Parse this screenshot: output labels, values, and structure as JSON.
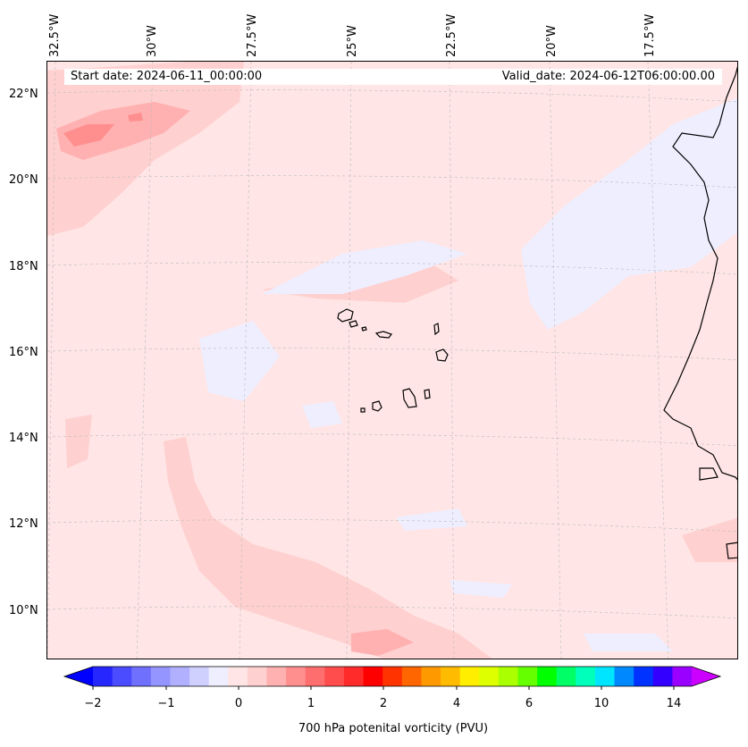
{
  "map": {
    "longitude_labels": [
      "32.5°W",
      "30°W",
      "27.5°W",
      "25°W",
      "22.5°W",
      "20°W",
      "17.5°W"
    ],
    "latitude_labels": [
      "22°N",
      "20°N",
      "18°N",
      "16°N",
      "14°N",
      "12°N",
      "10°N"
    ],
    "start_date": "Start date: 2024-06-11_00:00:00",
    "valid_date": "Valid_date: 2024-06-12T06:00:00.00",
    "background_color": "#ffe5e5"
  },
  "colorbar": {
    "title": "700 hPa potenital vorticity (PVU)",
    "tick_labels": [
      "−2",
      "−1",
      "0",
      "1",
      "2",
      "4",
      "6",
      "10",
      "14"
    ],
    "colors": [
      "#0000ff",
      "#2626ff",
      "#4b4bff",
      "#7070ff",
      "#9595ff",
      "#b0b0ff",
      "#d0d0ff",
      "#eeeeff",
      "#ffe5e5",
      "#ffd0d0",
      "#ffb0b0",
      "#ff8f8f",
      "#ff6e6e",
      "#ff4c4c",
      "#ff2b2b",
      "#ff0000",
      "#ff3300",
      "#ff6600",
      "#ff9900",
      "#ffbb00",
      "#ffee00",
      "#ddff00",
      "#aaff00",
      "#66ff00",
      "#00ff00",
      "#00ff66",
      "#00ffbb",
      "#00e5ff",
      "#0088ff",
      "#0033ff",
      "#3300ff",
      "#9900ff",
      "#cc00ff"
    ]
  }
}
